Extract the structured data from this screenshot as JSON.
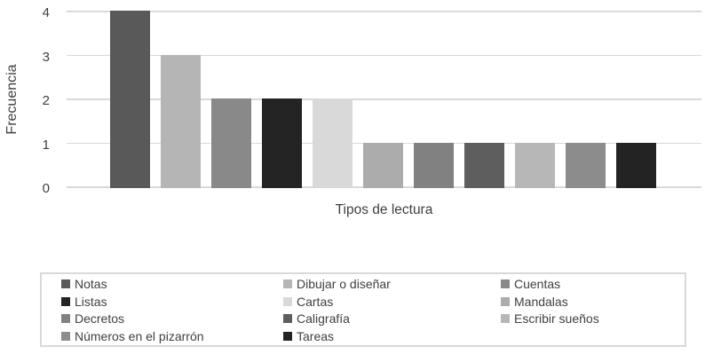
{
  "chart_data": {
    "type": "bar",
    "title": "",
    "xlabel": "Tipos de lectura",
    "ylabel": "Frecuencia",
    "ylim": [
      0,
      4
    ],
    "yticks": [
      0,
      1,
      2,
      3,
      4
    ],
    "grid": true,
    "legend_position": "bottom",
    "categories": [
      "Notas",
      "Dibujar o diseñar",
      "Cuentas",
      "Listas",
      "Cartas",
      "Mandalas",
      "Decretos",
      "Caligrafía",
      "Escribir sueños",
      "Números en el pizarrón",
      "Tareas"
    ],
    "values": [
      4,
      3,
      2,
      2,
      2,
      1,
      1,
      1,
      1,
      1,
      1
    ],
    "colors": [
      "#595959",
      "#b5b5b5",
      "#898989",
      "#242424",
      "#d9d9d9",
      "#acacac",
      "#818181",
      "#5e5e5e",
      "#b7b7b7",
      "#8c8c8c",
      "#232323"
    ]
  },
  "legend": {
    "items": [
      {
        "label": "Notas",
        "color": "#595959"
      },
      {
        "label": "Listas",
        "color": "#242424"
      },
      {
        "label": "Decretos",
        "color": "#818181"
      },
      {
        "label": "Números en el pizarrón",
        "color": "#8c8c8c"
      },
      {
        "label": "Dibujar o diseñar",
        "color": "#b5b5b5"
      },
      {
        "label": "Cartas",
        "color": "#d9d9d9"
      },
      {
        "label": "Caligrafía",
        "color": "#5e5e5e"
      },
      {
        "label": "Tareas",
        "color": "#232323"
      },
      {
        "label": "Cuentas",
        "color": "#898989"
      },
      {
        "label": "Mandalas",
        "color": "#acacac"
      },
      {
        "label": "Escribir sueños",
        "color": "#b7b7b7"
      }
    ]
  },
  "style_colors": {
    "gridline": "#d9d9d9",
    "axis_text": "#404040",
    "legend_border": "#d9d9d9"
  }
}
